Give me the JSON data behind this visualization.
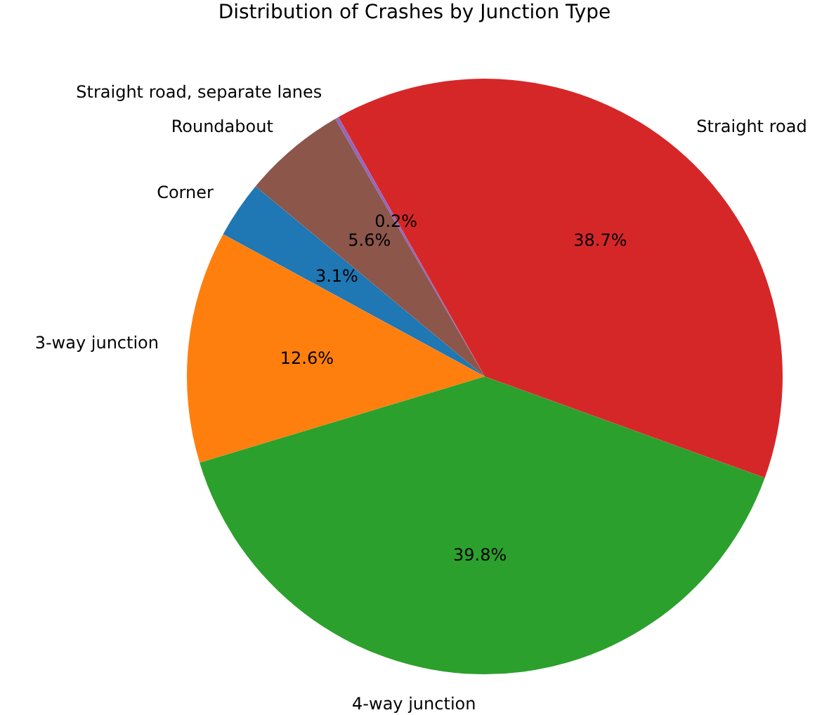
{
  "chart_data": {
    "type": "pie",
    "title": "Distribution of Crashes by Junction Type",
    "categories": [
      "Corner",
      "3-way junction",
      "4-way junction",
      "Straight road",
      "Straight road, separate lanes",
      "Roundabout"
    ],
    "values": [
      3.1,
      12.6,
      39.8,
      38.7,
      0.2,
      5.6
    ],
    "colors": [
      "#1f77b4",
      "#ff7f0e",
      "#2ca02c",
      "#d62728",
      "#9467bd",
      "#8c564b"
    ],
    "value_labels": [
      "3.1%",
      "12.6%",
      "39.8%",
      "38.7%",
      "0.2%",
      "5.6%"
    ]
  }
}
